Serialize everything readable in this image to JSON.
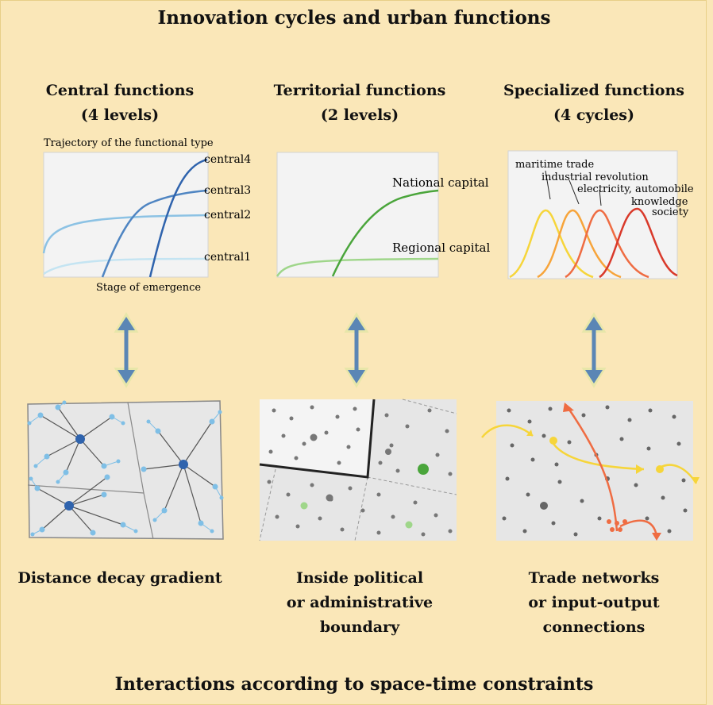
{
  "title": "Innovation cycles and urban functions",
  "footer": "Interactions according to space-time constraints",
  "columns": [
    {
      "title_line1": "Central functions",
      "title_line2": "(4 levels)",
      "chart": {
        "ylabel": "Trajectory of the functional type",
        "xlabel": "Stage of emergence",
        "curves": [
          "central4",
          "central3",
          "central2",
          "central1"
        ]
      },
      "bottom": [
        "Distance decay gradient"
      ]
    },
    {
      "title_line1": "Territorial functions",
      "title_line2": "(2 levels)",
      "chart": {
        "curves": [
          "National capital",
          "Regional capital"
        ]
      },
      "bottom": [
        "Inside political",
        "or administrative",
        "boundary"
      ]
    },
    {
      "title_line1": "Specialized functions",
      "title_line2": "(4 cycles)",
      "chart": {
        "curves": [
          "maritime trade",
          "industrial revolution",
          "electricity, automobile",
          "knowledge",
          "society"
        ]
      },
      "bottom": [
        "Trade networks",
        "or input-output",
        "connections"
      ]
    }
  ],
  "colors": {
    "background": "#fae7b8",
    "arrow": "#5b86b5",
    "central_blues": [
      "#2f63ad",
      "#4f85c2",
      "#8cc2e4",
      "#b9ddef"
    ],
    "territorial_greens": [
      "#4aa53b",
      "#9fd68a"
    ],
    "specialized_cycle": [
      "#f6d53a",
      "#f7a43a",
      "#ef6c42",
      "#d9392a"
    ]
  }
}
